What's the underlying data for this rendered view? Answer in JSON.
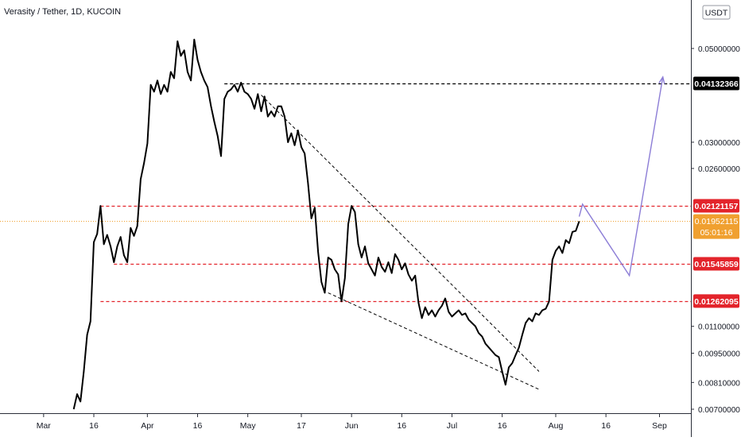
{
  "header": {
    "title": "Verasity / Tether, 1D, KUCOIN"
  },
  "currency_badge": "USDT",
  "countdown": "05:01:16",
  "chart_data": {
    "type": "line",
    "title": "Verasity / Tether, 1D, KUCOIN",
    "y_scale": "log",
    "ylim": [
      0.0069,
      0.058
    ],
    "xlim": [
      "2021-02-14",
      "2021-09-13"
    ],
    "x_ticks": [
      {
        "date": "2021-03-01",
        "label": "Mar"
      },
      {
        "date": "2021-03-16",
        "label": "16"
      },
      {
        "date": "2021-04-01",
        "label": "Apr"
      },
      {
        "date": "2021-04-16",
        "label": "16"
      },
      {
        "date": "2021-05-01",
        "label": "May"
      },
      {
        "date": "2021-05-17",
        "label": "17"
      },
      {
        "date": "2021-06-01",
        "label": "Jun"
      },
      {
        "date": "2021-06-16",
        "label": "16"
      },
      {
        "date": "2021-07-01",
        "label": "Jul"
      },
      {
        "date": "2021-07-16",
        "label": "16"
      },
      {
        "date": "2021-08-01",
        "label": "Aug"
      },
      {
        "date": "2021-08-16",
        "label": "16"
      },
      {
        "date": "2021-09-01",
        "label": "Sep"
      }
    ],
    "y_ticks": [
      "0.05000000",
      "0.03000000",
      "0.02600000",
      "0.01100000",
      "0.00950000",
      "0.00810000",
      "0.00700000"
    ],
    "series": [
      {
        "color": "#000000",
        "points": [
          [
            "2021-03-10",
            0.007
          ],
          [
            "2021-03-11",
            0.0076
          ],
          [
            "2021-03-12",
            0.0073
          ],
          [
            "2021-03-13",
            0.0086
          ],
          [
            "2021-03-14",
            0.0105
          ],
          [
            "2021-03-15",
            0.0113
          ],
          [
            "2021-03-16",
            0.0174
          ],
          [
            "2021-03-17",
            0.0182
          ],
          [
            "2021-03-18",
            0.0212
          ],
          [
            "2021-03-19",
            0.0172
          ],
          [
            "2021-03-20",
            0.0181
          ],
          [
            "2021-03-21",
            0.017
          ],
          [
            "2021-03-22",
            0.0156
          ],
          [
            "2021-03-23",
            0.017
          ],
          [
            "2021-03-24",
            0.0179
          ],
          [
            "2021-03-25",
            0.0162
          ],
          [
            "2021-03-26",
            0.0156
          ],
          [
            "2021-03-27",
            0.0188
          ],
          [
            "2021-03-28",
            0.018
          ],
          [
            "2021-03-29",
            0.019
          ],
          [
            "2021-03-30",
            0.0245
          ],
          [
            "2021-03-31",
            0.0268
          ],
          [
            "2021-04-01",
            0.0298
          ],
          [
            "2021-04-02",
            0.041
          ],
          [
            "2021-04-03",
            0.0395
          ],
          [
            "2021-04-04",
            0.042
          ],
          [
            "2021-04-05",
            0.039
          ],
          [
            "2021-04-06",
            0.041
          ],
          [
            "2021-04-07",
            0.0395
          ],
          [
            "2021-04-08",
            0.044
          ],
          [
            "2021-04-09",
            0.0425
          ],
          [
            "2021-04-10",
            0.052
          ],
          [
            "2021-04-11",
            0.048
          ],
          [
            "2021-04-12",
            0.0495
          ],
          [
            "2021-04-13",
            0.044
          ],
          [
            "2021-04-14",
            0.042
          ],
          [
            "2021-04-15",
            0.0525
          ],
          [
            "2021-04-16",
            0.047
          ],
          [
            "2021-04-17",
            0.044
          ],
          [
            "2021-04-18",
            0.042
          ],
          [
            "2021-04-19",
            0.0405
          ],
          [
            "2021-04-20",
            0.0365
          ],
          [
            "2021-04-21",
            0.0335
          ],
          [
            "2021-04-22",
            0.031
          ],
          [
            "2021-04-23",
            0.0278
          ],
          [
            "2021-04-24",
            0.038
          ],
          [
            "2021-04-25",
            0.0395
          ],
          [
            "2021-04-26",
            0.04
          ],
          [
            "2021-04-27",
            0.041
          ],
          [
            "2021-04-28",
            0.0395
          ],
          [
            "2021-04-29",
            0.0415
          ],
          [
            "2021-04-30",
            0.0395
          ],
          [
            "2021-05-01",
            0.039
          ],
          [
            "2021-05-02",
            0.038
          ],
          [
            "2021-05-03",
            0.036
          ],
          [
            "2021-05-04",
            0.039
          ],
          [
            "2021-05-05",
            0.0355
          ],
          [
            "2021-05-06",
            0.0385
          ],
          [
            "2021-05-07",
            0.0345
          ],
          [
            "2021-05-08",
            0.0355
          ],
          [
            "2021-05-09",
            0.0345
          ],
          [
            "2021-05-10",
            0.0365
          ],
          [
            "2021-05-11",
            0.0365
          ],
          [
            "2021-05-12",
            0.0345
          ],
          [
            "2021-05-13",
            0.03
          ],
          [
            "2021-05-14",
            0.0315
          ],
          [
            "2021-05-15",
            0.0295
          ],
          [
            "2021-05-16",
            0.032
          ],
          [
            "2021-05-17",
            0.0292
          ],
          [
            "2021-05-18",
            0.0282
          ],
          [
            "2021-05-19",
            0.024
          ],
          [
            "2021-05-20",
            0.0198
          ],
          [
            "2021-05-21",
            0.021
          ],
          [
            "2021-05-22",
            0.0165
          ],
          [
            "2021-05-23",
            0.014
          ],
          [
            "2021-05-24",
            0.0132
          ],
          [
            "2021-05-25",
            0.016
          ],
          [
            "2021-05-26",
            0.0158
          ],
          [
            "2021-05-27",
            0.015
          ],
          [
            "2021-05-28",
            0.0146
          ],
          [
            "2021-05-29",
            0.0126
          ],
          [
            "2021-05-30",
            0.0143
          ],
          [
            "2021-05-31",
            0.0192
          ],
          [
            "2021-06-01",
            0.0212
          ],
          [
            "2021-06-02",
            0.0205
          ],
          [
            "2021-06-03",
            0.0172
          ],
          [
            "2021-06-04",
            0.016
          ],
          [
            "2021-06-05",
            0.017
          ],
          [
            "2021-06-06",
            0.0155
          ],
          [
            "2021-06-07",
            0.015
          ],
          [
            "2021-06-08",
            0.0145
          ],
          [
            "2021-06-09",
            0.016
          ],
          [
            "2021-06-10",
            0.0152
          ],
          [
            "2021-06-11",
            0.0148
          ],
          [
            "2021-06-12",
            0.0156
          ],
          [
            "2021-06-13",
            0.0147
          ],
          [
            "2021-06-14",
            0.0163
          ],
          [
            "2021-06-15",
            0.0158
          ],
          [
            "2021-06-16",
            0.015
          ],
          [
            "2021-06-17",
            0.0155
          ],
          [
            "2021-06-18",
            0.0146
          ],
          [
            "2021-06-19",
            0.0141
          ],
          [
            "2021-06-20",
            0.0145
          ],
          [
            "2021-06-21",
            0.0125
          ],
          [
            "2021-06-22",
            0.0115
          ],
          [
            "2021-06-23",
            0.0122
          ],
          [
            "2021-06-24",
            0.0117
          ],
          [
            "2021-06-25",
            0.012
          ],
          [
            "2021-06-26",
            0.0116
          ],
          [
            "2021-06-27",
            0.012
          ],
          [
            "2021-06-28",
            0.0123
          ],
          [
            "2021-06-29",
            0.0128
          ],
          [
            "2021-06-30",
            0.0119
          ],
          [
            "2021-07-01",
            0.0116
          ],
          [
            "2021-07-02",
            0.0118
          ],
          [
            "2021-07-03",
            0.012
          ],
          [
            "2021-07-04",
            0.0117
          ],
          [
            "2021-07-05",
            0.0118
          ],
          [
            "2021-07-06",
            0.0114
          ],
          [
            "2021-07-07",
            0.0112
          ],
          [
            "2021-07-08",
            0.011
          ],
          [
            "2021-07-09",
            0.0106
          ],
          [
            "2021-07-10",
            0.0104
          ],
          [
            "2021-07-11",
            0.01
          ],
          [
            "2021-07-12",
            0.0098
          ],
          [
            "2021-07-13",
            0.0096
          ],
          [
            "2021-07-14",
            0.0094
          ],
          [
            "2021-07-15",
            0.0093
          ],
          [
            "2021-07-16",
            0.0086
          ],
          [
            "2021-07-17",
            0.008
          ],
          [
            "2021-07-18",
            0.0088
          ],
          [
            "2021-07-19",
            0.009
          ],
          [
            "2021-07-20",
            0.0094
          ],
          [
            "2021-07-21",
            0.0098
          ],
          [
            "2021-07-22",
            0.0105
          ],
          [
            "2021-07-23",
            0.0112
          ],
          [
            "2021-07-24",
            0.0115
          ],
          [
            "2021-07-25",
            0.0113
          ],
          [
            "2021-07-26",
            0.0118
          ],
          [
            "2021-07-27",
            0.0117
          ],
          [
            "2021-07-28",
            0.012
          ],
          [
            "2021-07-29",
            0.0121
          ],
          [
            "2021-07-30",
            0.0126
          ],
          [
            "2021-07-31",
            0.0158
          ],
          [
            "2021-08-01",
            0.0166
          ],
          [
            "2021-08-02",
            0.017
          ],
          [
            "2021-08-03",
            0.0164
          ],
          [
            "2021-08-04",
            0.0176
          ],
          [
            "2021-08-05",
            0.0173
          ],
          [
            "2021-08-06",
            0.0184
          ],
          [
            "2021-08-07",
            0.0185
          ],
          [
            "2021-08-08",
            0.0195
          ]
        ]
      }
    ],
    "trendlines": [
      {
        "from": [
          "2021-05-05",
          0.0388
        ],
        "to": [
          "2021-07-27",
          0.0086
        ],
        "style": "dashed"
      },
      {
        "from": [
          "2021-05-25",
          0.0132
        ],
        "to": [
          "2021-07-27",
          0.0078
        ],
        "style": "dashed"
      }
    ],
    "horizontal_levels": [
      {
        "value": 0.04132366,
        "label": "0.04132366",
        "color": "#000000",
        "from": "2021-04-24"
      },
      {
        "value": 0.02121157,
        "label": "0.02121157",
        "color": "#e3242b",
        "from": "2021-03-18"
      },
      {
        "value": 0.01545859,
        "label": "0.01545859",
        "color": "#e3242b",
        "from": "2021-03-22"
      },
      {
        "value": 0.01262095,
        "label": "0.01262095",
        "color": "#e3242b",
        "from": "2021-03-18"
      }
    ],
    "last_price": {
      "value": 0.01952115,
      "label": "0.01952115",
      "color": "#f0a030"
    },
    "projection": {
      "color": "#8c7dd6",
      "points": [
        [
          "2021-08-08",
          0.02
        ],
        [
          "2021-08-09",
          0.0214
        ],
        [
          "2021-08-23",
          0.0145
        ],
        [
          "2021-09-02",
          0.0428
        ]
      ]
    }
  }
}
